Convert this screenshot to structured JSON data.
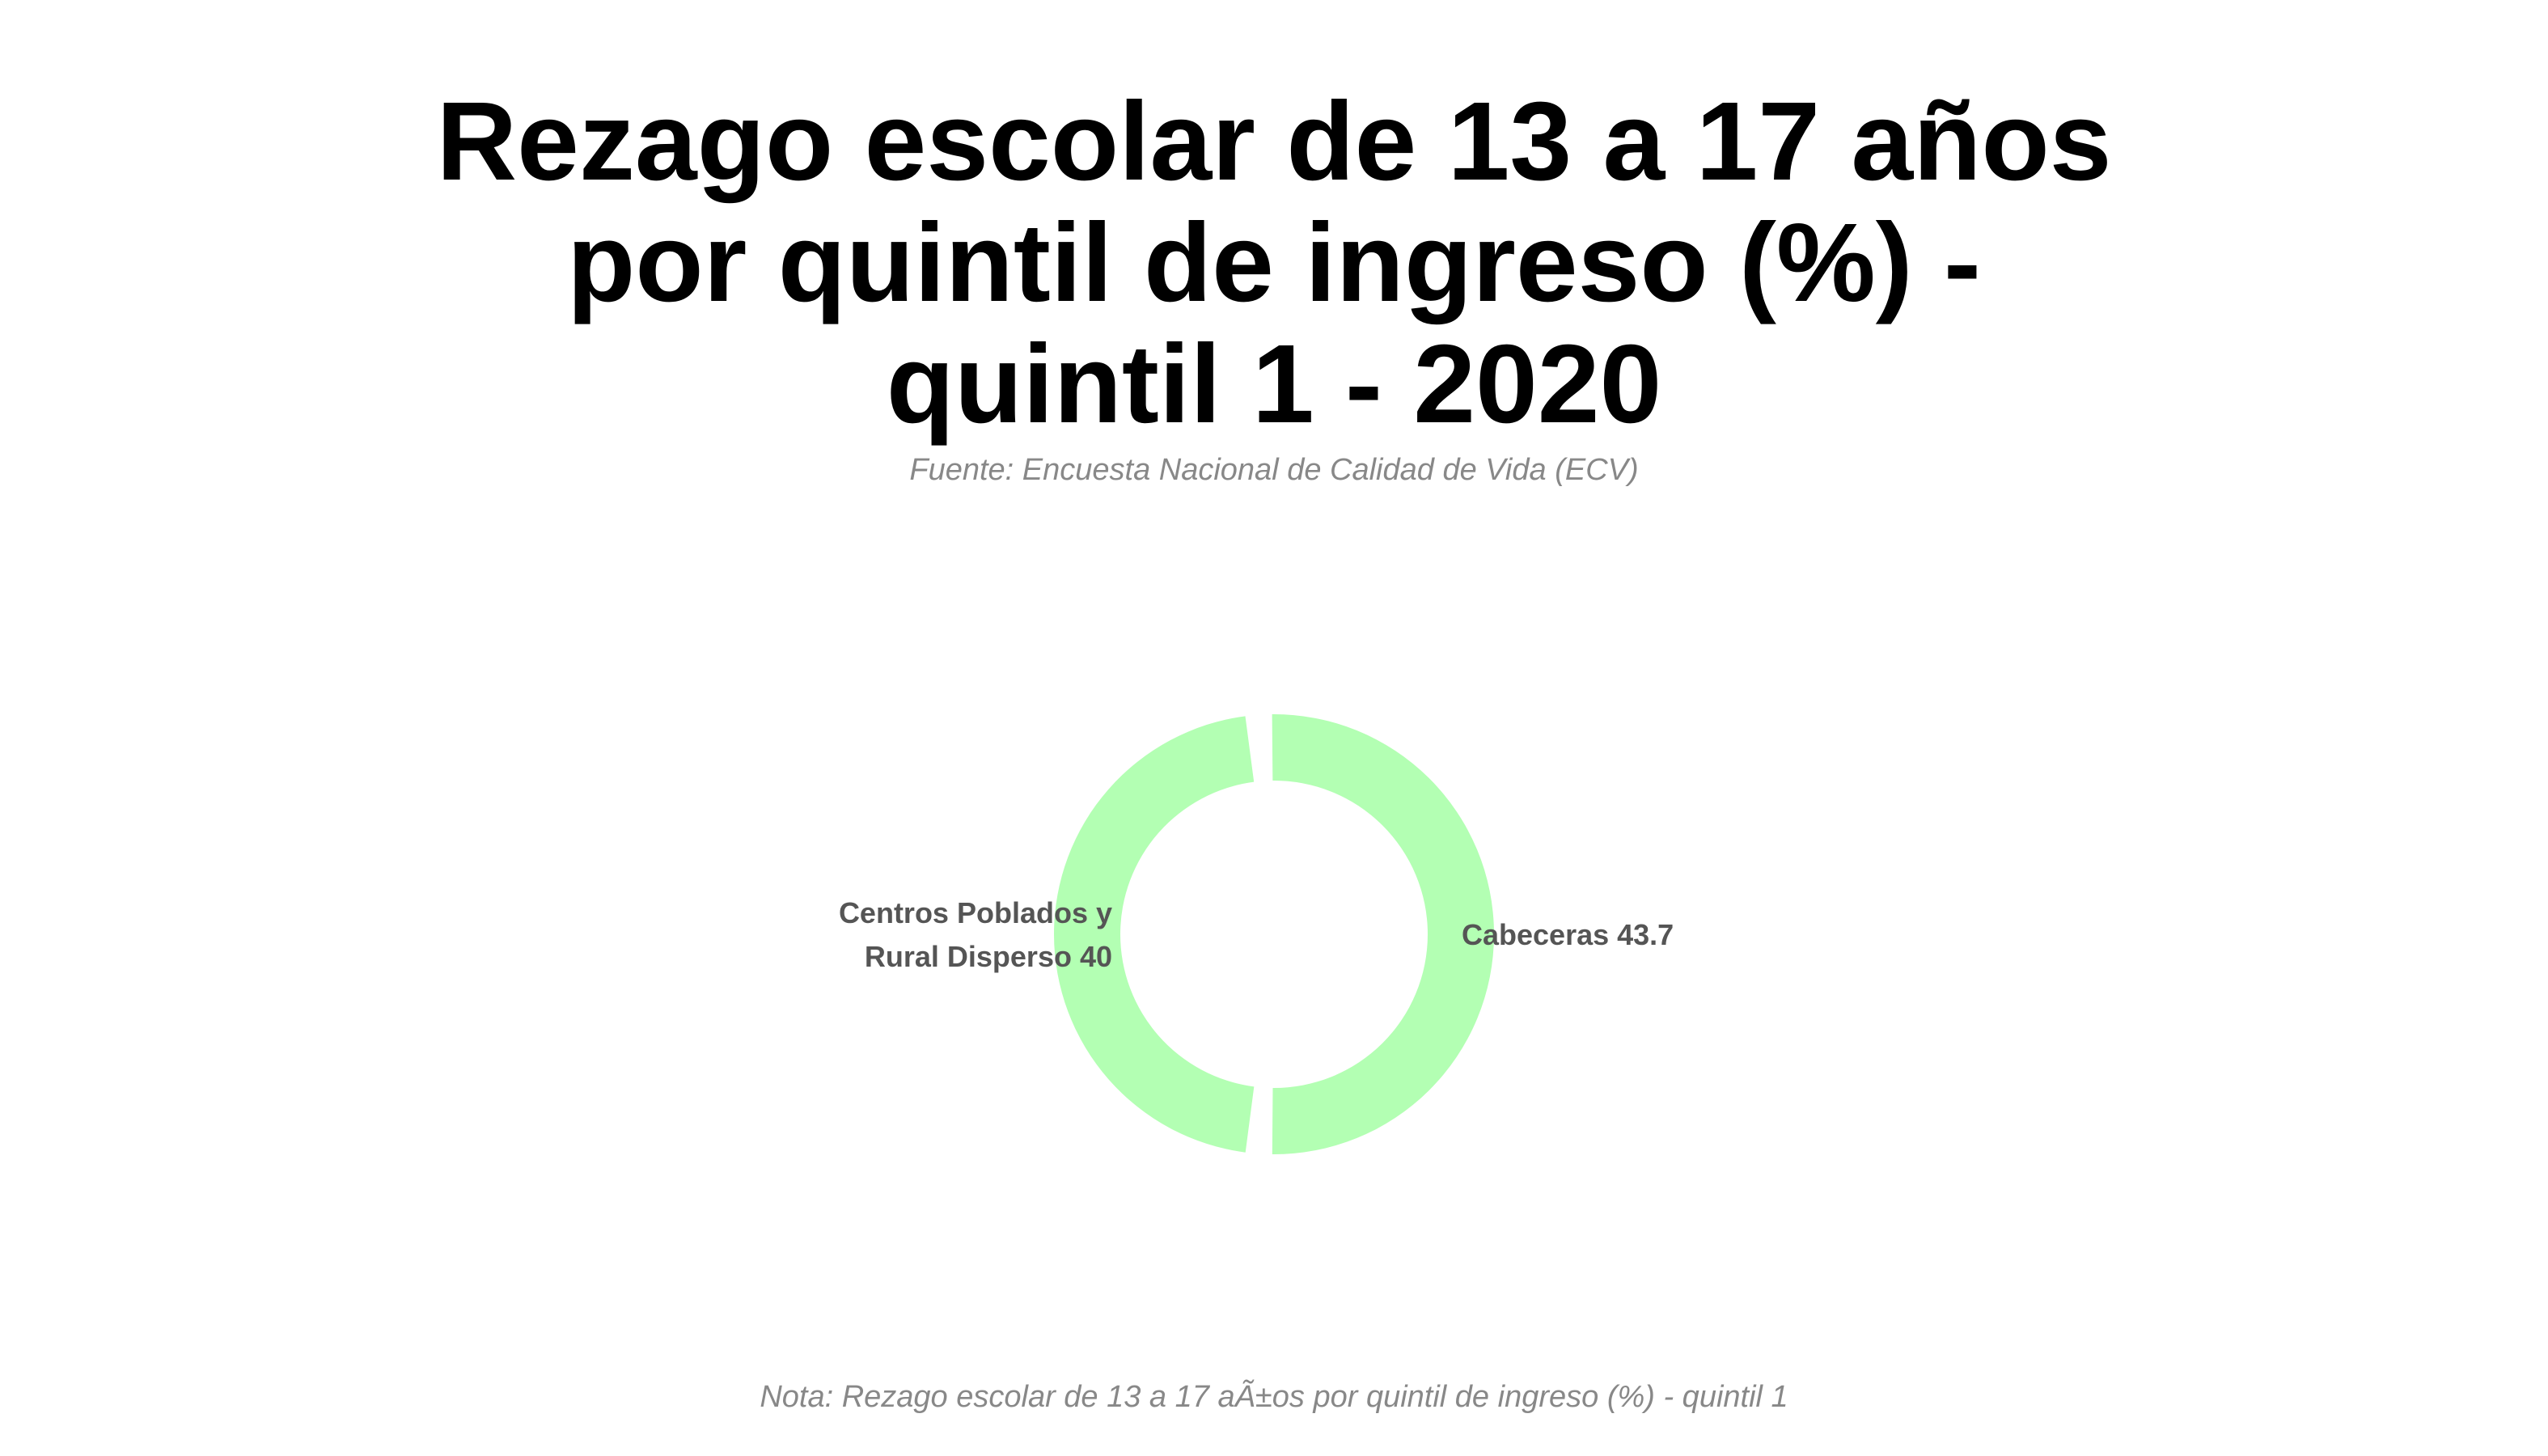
{
  "title_lines": [
    "Rezago escolar de 13 a 17 años",
    "por quintil de ingreso (%) -",
    "quintil 1 - 2020"
  ],
  "subtitle": "Fuente: Encuesta Nacional de Calidad de Vida (ECV)",
  "note": "Nota: Rezago escolar de 13 a 17 aÃ±os por quintil de ingreso (%) - quintil 1",
  "colors": {
    "slice": "#b3ffb3",
    "label": "#555555"
  },
  "chart_data": {
    "type": "pie",
    "style": "donut",
    "title": "Rezago escolar de 13 a 17 años por quintil de ingreso (%) - quintil 1 - 2020",
    "categories": [
      "Cabeceras",
      "Centros Poblados y Rural Disperso"
    ],
    "values": [
      43.7,
      40
    ],
    "labels": [
      {
        "lines": [
          "Cabeceras 43.7"
        ]
      },
      {
        "lines": [
          "Centros Poblados y",
          "Rural Disperso 40"
        ]
      }
    ]
  }
}
